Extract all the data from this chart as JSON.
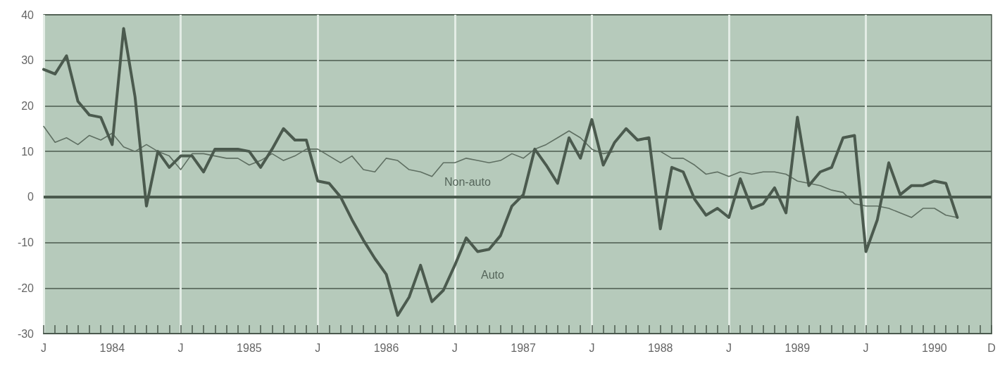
{
  "chart_data": {
    "type": "line",
    "categories": [
      "J",
      null,
      null,
      null,
      null,
      null,
      "1984",
      null,
      null,
      null,
      null,
      null,
      "J",
      null,
      null,
      null,
      null,
      null,
      "1985",
      null,
      null,
      null,
      null,
      null,
      "J",
      null,
      null,
      null,
      null,
      null,
      "1986",
      null,
      null,
      null,
      null,
      null,
      "J",
      null,
      null,
      null,
      null,
      null,
      "1987",
      null,
      null,
      null,
      null,
      null,
      "J",
      null,
      null,
      null,
      null,
      null,
      "1988",
      null,
      null,
      null,
      null,
      null,
      "J",
      null,
      null,
      null,
      null,
      null,
      "1989",
      null,
      null,
      null,
      null,
      null,
      "J",
      null,
      null,
      null,
      null,
      null,
      "1990",
      null,
      null,
      null,
      null,
      "D"
    ],
    "series": [
      {
        "name": "Auto",
        "color": "#4b5a4e",
        "values": [
          28,
          27,
          31,
          21,
          18,
          17.5,
          11.5,
          37,
          22,
          -2,
          10,
          6.5,
          9,
          9,
          5.5,
          10.5,
          10.5,
          10.5,
          10,
          6.5,
          10.5,
          15,
          12.5,
          12.5,
          3.5,
          3,
          0,
          -5,
          -9.5,
          -13.5,
          -17,
          -26,
          -22,
          -15,
          -23,
          -20.5,
          -15,
          -9,
          -12,
          -11.5,
          -8.5,
          -2,
          0.5,
          10.5,
          7,
          3,
          13,
          8.5,
          17,
          7,
          12,
          15,
          12.5,
          13,
          -7,
          6.5,
          5.5,
          -0.5,
          -4,
          -2.5,
          -4.5,
          4,
          -2.5,
          -1.5,
          2,
          -3.5,
          17.5,
          2.5,
          5.5,
          6.5,
          13,
          13.5,
          -12,
          -5,
          7.5,
          0.5,
          2.5,
          2.5,
          3.5,
          3,
          -4.5,
          null,
          null,
          null
        ]
      },
      {
        "name": "Non-auto",
        "color": "#5f6f62",
        "values": [
          15.5,
          12,
          13,
          11.5,
          13.5,
          12.5,
          14,
          11,
          10,
          11.5,
          10,
          9,
          6,
          9.5,
          9.5,
          9,
          8.5,
          8.5,
          7,
          8,
          9.5,
          8,
          9,
          10.5,
          10.5,
          9,
          7.5,
          9,
          6,
          5.5,
          8.5,
          8,
          6,
          5.5,
          4.5,
          7.5,
          7.5,
          8.5,
          8,
          7.5,
          8,
          9.5,
          8.5,
          10.5,
          11.5,
          13,
          14.5,
          13,
          10.5,
          9.5,
          10,
          10,
          10,
          10,
          10,
          8.5,
          8.5,
          7,
          5,
          5.5,
          4.5,
          5.5,
          5,
          5.5,
          5.5,
          5,
          3.5,
          3,
          2.5,
          1.5,
          1,
          -1.5,
          -2,
          -2,
          -2.5,
          -3.5,
          -4.5,
          -2.5,
          -2.5,
          -4,
          -4.5,
          null,
          null,
          null
        ]
      }
    ],
    "ylim": [
      -30,
      40
    ],
    "yticks": [
      -30,
      -20,
      -10,
      0,
      10,
      20,
      30,
      40
    ],
    "grid": true,
    "ref_lines": [
      {
        "axis": "y",
        "value": 0,
        "color": "#4b5a4e"
      }
    ],
    "legend": false,
    "marker": "none",
    "line_style": "solid"
  }
}
